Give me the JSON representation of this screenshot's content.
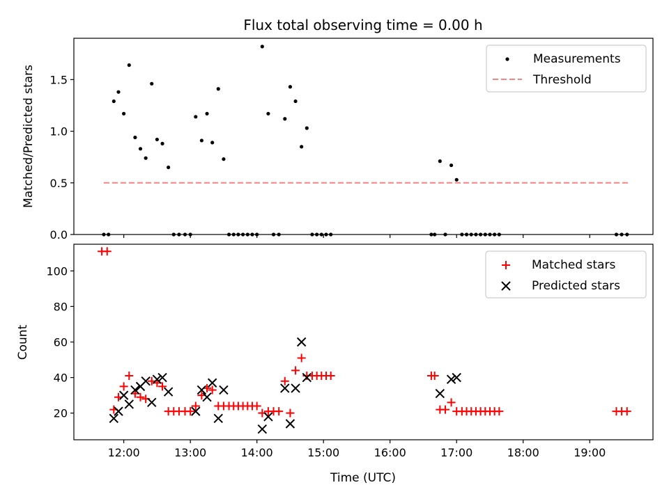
{
  "figure": {
    "title": "Flux total observing time = 0.00 h"
  },
  "chart_data": [
    {
      "type": "scatter",
      "panel": "top",
      "title": "Flux total observing time = 0.00 h",
      "xlabel": "",
      "ylabel": "Matched/Predicted stars",
      "x_unit": "time (UTC), decimal hours",
      "xlim": [
        11.25,
        19.95
      ],
      "ylim": [
        0,
        1.9
      ],
      "x_ticks": [
        12,
        13,
        14,
        15,
        16,
        17,
        18,
        19
      ],
      "x_tick_labels_shown": false,
      "y_ticks": [
        0.0,
        0.5,
        1.0,
        1.5
      ],
      "y_tick_labels": [
        "0.0",
        "0.5",
        "1.0",
        "1.5"
      ],
      "grid": false,
      "legend_position": "top-right",
      "series": [
        {
          "name": "Measurements",
          "kind": "points",
          "color": "#000000",
          "marker": "dot",
          "points": [
            [
              11.7,
              0
            ],
            [
              11.77,
              0
            ],
            [
              11.85,
              1.29
            ],
            [
              11.92,
              1.38
            ],
            [
              12.0,
              1.17
            ],
            [
              12.08,
              1.64
            ],
            [
              12.17,
              0.94
            ],
            [
              12.25,
              0.83
            ],
            [
              12.33,
              0.74
            ],
            [
              12.42,
              1.46
            ],
            [
              12.5,
              0.92
            ],
            [
              12.58,
              0.88
            ],
            [
              12.67,
              0.65
            ],
            [
              12.75,
              0
            ],
            [
              12.83,
              0
            ],
            [
              12.92,
              0
            ],
            [
              13.0,
              0
            ],
            [
              13.08,
              1.14
            ],
            [
              13.17,
              0.91
            ],
            [
              13.25,
              1.17
            ],
            [
              13.33,
              0.89
            ],
            [
              13.42,
              1.41
            ],
            [
              13.5,
              0.73
            ],
            [
              13.58,
              0
            ],
            [
              13.65,
              0
            ],
            [
              13.72,
              0
            ],
            [
              13.79,
              0
            ],
            [
              13.86,
              0
            ],
            [
              13.93,
              0
            ],
            [
              14.0,
              0
            ],
            [
              14.08,
              1.82
            ],
            [
              14.17,
              1.17
            ],
            [
              14.25,
              0
            ],
            [
              14.33,
              0
            ],
            [
              14.42,
              1.12
            ],
            [
              14.5,
              1.43
            ],
            [
              14.58,
              1.29
            ],
            [
              14.67,
              0.85
            ],
            [
              14.75,
              1.03
            ],
            [
              14.83,
              0
            ],
            [
              14.9,
              0
            ],
            [
              14.97,
              0
            ],
            [
              15.04,
              0
            ],
            [
              15.11,
              0
            ],
            [
              16.62,
              0
            ],
            [
              16.67,
              0
            ],
            [
              16.75,
              0.71
            ],
            [
              16.83,
              0
            ],
            [
              16.92,
              0.67
            ],
            [
              17.0,
              0.53
            ],
            [
              17.08,
              0
            ],
            [
              17.15,
              0
            ],
            [
              17.22,
              0
            ],
            [
              17.29,
              0
            ],
            [
              17.36,
              0
            ],
            [
              17.43,
              0
            ],
            [
              17.5,
              0
            ],
            [
              17.57,
              0
            ],
            [
              17.64,
              0
            ],
            [
              19.4,
              0
            ],
            [
              19.48,
              0
            ],
            [
              19.56,
              0
            ]
          ]
        },
        {
          "name": "Threshold",
          "kind": "line",
          "color": "#ff7f7f",
          "dash": true,
          "points": [
            [
              11.7,
              0.5
            ],
            [
              19.6,
              0.5
            ]
          ]
        }
      ]
    },
    {
      "type": "scatter",
      "panel": "bottom",
      "title": "",
      "xlabel": "Time (UTC)",
      "ylabel": "Count",
      "x_unit": "time (UTC), decimal hours",
      "xlim": [
        11.25,
        19.95
      ],
      "ylim": [
        5,
        115
      ],
      "x_ticks": [
        12,
        13,
        14,
        15,
        16,
        17,
        18,
        19
      ],
      "x_tick_labels": [
        "12:00",
        "13:00",
        "14:00",
        "15:00",
        "16:00",
        "17:00",
        "18:00",
        "19:00"
      ],
      "y_ticks": [
        20,
        40,
        60,
        80,
        100
      ],
      "y_tick_labels": [
        "20",
        "40",
        "60",
        "80",
        "100"
      ],
      "grid": false,
      "legend_position": "top-right",
      "series": [
        {
          "name": "Matched stars",
          "kind": "points",
          "color": "#ff0000",
          "marker": "plus",
          "points": [
            [
              11.67,
              111
            ],
            [
              11.75,
              111
            ],
            [
              11.85,
              22
            ],
            [
              11.92,
              29
            ],
            [
              12.0,
              35
            ],
            [
              12.08,
              41
            ],
            [
              12.17,
              31
            ],
            [
              12.25,
              29
            ],
            [
              12.33,
              28
            ],
            [
              12.42,
              38
            ],
            [
              12.5,
              37
            ],
            [
              12.58,
              35
            ],
            [
              12.67,
              21
            ],
            [
              12.75,
              21
            ],
            [
              12.83,
              21
            ],
            [
              12.92,
              21
            ],
            [
              13.0,
              21
            ],
            [
              13.08,
              24
            ],
            [
              13.17,
              30
            ],
            [
              13.25,
              34
            ],
            [
              13.33,
              33
            ],
            [
              13.42,
              24
            ],
            [
              13.5,
              24
            ],
            [
              13.58,
              24
            ],
            [
              13.65,
              24
            ],
            [
              13.72,
              24
            ],
            [
              13.79,
              24
            ],
            [
              13.86,
              24
            ],
            [
              13.93,
              24
            ],
            [
              14.0,
              24
            ],
            [
              14.08,
              20
            ],
            [
              14.17,
              21
            ],
            [
              14.25,
              21
            ],
            [
              14.33,
              21
            ],
            [
              14.42,
              38
            ],
            [
              14.5,
              20
            ],
            [
              14.58,
              44
            ],
            [
              14.67,
              51
            ],
            [
              14.75,
              41
            ],
            [
              14.83,
              41
            ],
            [
              14.9,
              41
            ],
            [
              14.97,
              41
            ],
            [
              15.04,
              41
            ],
            [
              15.11,
              41
            ],
            [
              16.62,
              41
            ],
            [
              16.67,
              41
            ],
            [
              16.75,
              22
            ],
            [
              16.83,
              22
            ],
            [
              16.92,
              26
            ],
            [
              17.0,
              21
            ],
            [
              17.08,
              21
            ],
            [
              17.15,
              21
            ],
            [
              17.22,
              21
            ],
            [
              17.29,
              21
            ],
            [
              17.36,
              21
            ],
            [
              17.43,
              21
            ],
            [
              17.5,
              21
            ],
            [
              17.57,
              21
            ],
            [
              17.64,
              21
            ],
            [
              19.4,
              21
            ],
            [
              19.48,
              21
            ],
            [
              19.56,
              21
            ]
          ]
        },
        {
          "name": "Predicted stars",
          "kind": "points",
          "color": "#000000",
          "marker": "x",
          "points": [
            [
              11.85,
              17
            ],
            [
              11.92,
              21
            ],
            [
              12.0,
              30
            ],
            [
              12.08,
              25
            ],
            [
              12.17,
              33
            ],
            [
              12.25,
              35
            ],
            [
              12.33,
              38
            ],
            [
              12.42,
              26
            ],
            [
              12.5,
              39
            ],
            [
              12.58,
              40
            ],
            [
              12.67,
              32
            ],
            [
              13.08,
              21
            ],
            [
              13.17,
              33
            ],
            [
              13.25,
              29
            ],
            [
              13.33,
              37
            ],
            [
              13.42,
              17
            ],
            [
              13.5,
              33
            ],
            [
              14.08,
              11
            ],
            [
              14.17,
              18
            ],
            [
              14.42,
              34
            ],
            [
              14.5,
              14
            ],
            [
              14.58,
              34
            ],
            [
              14.67,
              60
            ],
            [
              14.75,
              40
            ],
            [
              16.75,
              31
            ],
            [
              16.92,
              39
            ],
            [
              17.0,
              40
            ]
          ]
        }
      ]
    }
  ]
}
